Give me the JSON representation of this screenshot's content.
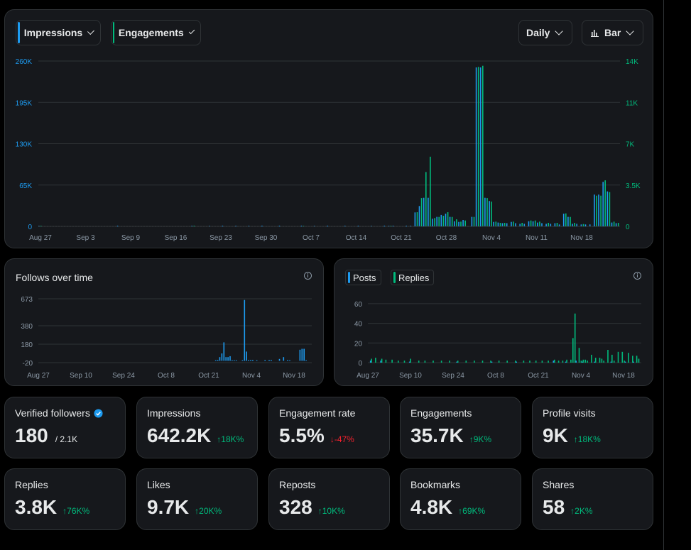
{
  "colors": {
    "impressions": "#1d9bf0",
    "engagements": "#00ba7c",
    "negative": "#f4212e"
  },
  "toolbar": {
    "impressions_label": "Impressions",
    "engagements_label": "Engagements",
    "period_label": "Daily",
    "chart_type_label": "Bar"
  },
  "follows": {
    "title": "Follows over time"
  },
  "posts_chart": {
    "posts_label": "Posts",
    "replies_label": "Replies"
  },
  "stats": [
    {
      "label": "Verified followers",
      "value": "180",
      "sub": "/ 2.1K",
      "change": "",
      "verified_icon": "verified-badge-icon"
    },
    {
      "label": "Impressions",
      "value": "642.2K",
      "change": "18K%",
      "direction": "up"
    },
    {
      "label": "Engagement rate",
      "value": "5.5%",
      "change": "-47%",
      "direction": "down"
    },
    {
      "label": "Engagements",
      "value": "35.7K",
      "change": "9K%",
      "direction": "up"
    },
    {
      "label": "Profile visits",
      "value": "9K",
      "change": "18K%",
      "direction": "up"
    },
    {
      "label": "Replies",
      "value": "3.8K",
      "change": "76K%",
      "direction": "up"
    },
    {
      "label": "Likes",
      "value": "9.7K",
      "change": "20K%",
      "direction": "up"
    },
    {
      "label": "Reposts",
      "value": "328",
      "change": "10K%",
      "direction": "up"
    },
    {
      "label": "Bookmarks",
      "value": "4.8K",
      "change": "69K%",
      "direction": "up"
    },
    {
      "label": "Shares",
      "value": "58",
      "change": "2K%",
      "direction": "up"
    }
  ],
  "chart_data": [
    {
      "type": "bar",
      "x_ticks": [
        "Aug 27",
        "Sep 3",
        "Sep 9",
        "Sep 16",
        "Sep 23",
        "Sep 30",
        "Oct 7",
        "Oct 14",
        "Oct 21",
        "Oct 28",
        "Nov 4",
        "Nov 11",
        "Nov 18"
      ],
      "y_ticks_left": [
        "260K",
        "195K",
        "130K",
        "65K",
        "0"
      ],
      "y_ticks_right": [
        "14K",
        "11K",
        "7K",
        "3.5K",
        "0"
      ],
      "ylim_left": [
        0,
        260000
      ],
      "ylim_right": [
        0,
        14000
      ],
      "series": [
        {
          "name": "Impressions",
          "color": "#1d9bf0",
          "axis": "left",
          "points": [
            [
              0,
              300
            ],
            [
              18,
              800
            ],
            [
              35,
              350
            ],
            [
              39,
              300
            ],
            [
              42,
              400
            ],
            [
              45,
              350
            ],
            [
              48,
              300
            ],
            [
              51,
              350
            ],
            [
              55,
              400
            ],
            [
              60,
              300
            ],
            [
              63,
              350
            ],
            [
              66,
              450
            ],
            [
              70,
              600
            ],
            [
              73,
              500
            ],
            [
              76,
              400
            ],
            [
              79,
              350
            ],
            [
              80,
              300
            ],
            [
              81,
              300
            ],
            [
              84,
              300
            ],
            [
              85,
              400
            ],
            [
              86,
              22000
            ],
            [
              87,
              32000
            ],
            [
              88,
              45000
            ],
            [
              89,
              45000
            ],
            [
              90,
              12000
            ],
            [
              91,
              15000
            ],
            [
              92,
              18000
            ],
            [
              93,
              20000
            ],
            [
              94,
              15000
            ],
            [
              95,
              8000
            ],
            [
              96,
              7000
            ],
            [
              97,
              10000
            ],
            [
              99,
              15000
            ],
            [
              100,
              250000
            ],
            [
              101,
              250000
            ],
            [
              102,
              45000
            ],
            [
              103,
              40000
            ],
            [
              104,
              7000
            ],
            [
              105,
              6000
            ],
            [
              106,
              5000
            ],
            [
              107,
              5000
            ],
            [
              108,
              7000
            ],
            [
              109,
              5000
            ],
            [
              110,
              4000
            ],
            [
              111,
              4000
            ],
            [
              112,
              8000
            ],
            [
              113,
              8000
            ],
            [
              114,
              6000
            ],
            [
              115,
              5000
            ],
            [
              116,
              4000
            ],
            [
              117,
              4000
            ],
            [
              118,
              5000
            ],
            [
              119,
              3000
            ],
            [
              120,
              20000
            ],
            [
              121,
              15000
            ],
            [
              122,
              4000
            ],
            [
              123,
              4000
            ],
            [
              124,
              3000
            ],
            [
              125,
              3000
            ],
            [
              126,
              3000
            ],
            [
              127,
              50000
            ],
            [
              128,
              50000
            ],
            [
              129,
              70000
            ],
            [
              130,
              55000
            ],
            [
              131,
              6000
            ],
            [
              132,
              5000
            ]
          ]
        },
        {
          "name": "Engagements",
          "color": "#00ba7c",
          "axis": "right",
          "points": [
            [
              0,
              30
            ],
            [
              35,
              20
            ],
            [
              60,
              20
            ],
            [
              80,
              20
            ],
            [
              86,
              1200
            ],
            [
              87,
              2400
            ],
            [
              88,
              4600
            ],
            [
              89,
              5900
            ],
            [
              90,
              700
            ],
            [
              91,
              800
            ],
            [
              92,
              900
            ],
            [
              93,
              1200
            ],
            [
              94,
              800
            ],
            [
              95,
              600
            ],
            [
              96,
              400
            ],
            [
              97,
              500
            ],
            [
              99,
              800
            ],
            [
              100,
              13500
            ],
            [
              101,
              13600
            ],
            [
              102,
              2400
            ],
            [
              103,
              2100
            ],
            [
              104,
              400
            ],
            [
              105,
              300
            ],
            [
              106,
              300
            ],
            [
              108,
              400
            ],
            [
              110,
              300
            ],
            [
              112,
              500
            ],
            [
              113,
              500
            ],
            [
              114,
              400
            ],
            [
              116,
              300
            ],
            [
              118,
              300
            ],
            [
              120,
              1100
            ],
            [
              121,
              800
            ],
            [
              122,
              300
            ],
            [
              124,
              200
            ],
            [
              127,
              2600
            ],
            [
              128,
              2600
            ],
            [
              129,
              3900
            ],
            [
              130,
              2900
            ],
            [
              131,
              400
            ],
            [
              132,
              300
            ]
          ]
        }
      ]
    },
    {
      "type": "bar",
      "title": "Follows over time",
      "x_ticks": [
        "Aug 27",
        "Sep 10",
        "Sep 24",
        "Oct 8",
        "Oct 21",
        "Nov 4",
        "Nov 18"
      ],
      "y_ticks": [
        "673",
        "380",
        "180",
        "-20"
      ],
      "ylim": [
        -20,
        673
      ],
      "series": [
        {
          "name": "Follows",
          "color": "#1d9bf0",
          "points": [
            [
              86,
              5
            ],
            [
              87,
              10
            ],
            [
              88,
              40
            ],
            [
              89,
              80
            ],
            [
              90,
              200
            ],
            [
              91,
              40
            ],
            [
              92,
              40
            ],
            [
              93,
              50
            ],
            [
              94,
              5
            ],
            [
              95,
              5
            ],
            [
              96,
              5
            ],
            [
              99,
              5
            ],
            [
              100,
              660
            ],
            [
              101,
              100
            ],
            [
              102,
              10
            ],
            [
              103,
              10
            ],
            [
              104,
              10
            ],
            [
              106,
              5
            ],
            [
              110,
              10
            ],
            [
              112,
              10
            ],
            [
              113,
              10
            ],
            [
              117,
              20
            ],
            [
              119,
              40
            ],
            [
              121,
              10
            ],
            [
              122,
              5
            ],
            [
              127,
              120
            ],
            [
              128,
              130
            ],
            [
              129,
              130
            ],
            [
              130,
              5
            ]
          ]
        }
      ]
    },
    {
      "type": "bar",
      "x_ticks": [
        "Aug 27",
        "Sep 10",
        "Sep 24",
        "Oct 8",
        "Oct 21",
        "Nov 4",
        "Nov 18"
      ],
      "y_ticks": [
        "60",
        "40",
        "20",
        "0"
      ],
      "ylim": [
        0,
        65
      ],
      "series": [
        {
          "name": "Posts",
          "color": "#1d9bf0",
          "points": [
            [
              1,
              2
            ],
            [
              6,
              2
            ],
            [
              20,
              1
            ],
            [
              43,
              1
            ],
            [
              60,
              1
            ],
            [
              72,
              1
            ],
            [
              90,
              2
            ],
            [
              96,
              1
            ],
            [
              101,
              2
            ],
            [
              104,
              1
            ],
            [
              110,
              1
            ],
            [
              118,
              1
            ],
            [
              125,
              1
            ],
            [
              129,
              1
            ]
          ]
        },
        {
          "name": "Replies",
          "color": "#00ba7c",
          "points": [
            [
              1,
              4
            ],
            [
              3,
              5
            ],
            [
              6,
              4
            ],
            [
              8,
              3
            ],
            [
              11,
              3
            ],
            [
              14,
              2
            ],
            [
              17,
              2
            ],
            [
              20,
              4
            ],
            [
              24,
              2
            ],
            [
              27,
              2
            ],
            [
              31,
              2
            ],
            [
              35,
              2
            ],
            [
              39,
              2
            ],
            [
              43,
              2
            ],
            [
              47,
              2
            ],
            [
              51,
              2
            ],
            [
              55,
              2
            ],
            [
              59,
              2
            ],
            [
              63,
              2
            ],
            [
              67,
              2
            ],
            [
              71,
              2
            ],
            [
              75,
              2
            ],
            [
              78,
              2
            ],
            [
              81,
              2
            ],
            [
              84,
              2
            ],
            [
              87,
              2
            ],
            [
              90,
              3
            ],
            [
              92,
              2
            ],
            [
              94,
              2
            ],
            [
              96,
              3
            ],
            [
              98,
              3
            ],
            [
              99,
              25
            ],
            [
              100,
              50
            ],
            [
              102,
              15
            ],
            [
              103,
              2
            ],
            [
              104,
              3
            ],
            [
              105,
              3
            ],
            [
              106,
              2
            ],
            [
              108,
              8
            ],
            [
              110,
              5
            ],
            [
              112,
              5
            ],
            [
              113,
              4
            ],
            [
              114,
              2
            ],
            [
              116,
              13
            ],
            [
              118,
              8
            ],
            [
              119,
              2
            ],
            [
              121,
              11
            ],
            [
              123,
              11
            ],
            [
              124,
              2
            ],
            [
              126,
              10
            ],
            [
              128,
              7
            ],
            [
              130,
              7
            ],
            [
              131,
              4
            ]
          ]
        }
      ]
    }
  ]
}
